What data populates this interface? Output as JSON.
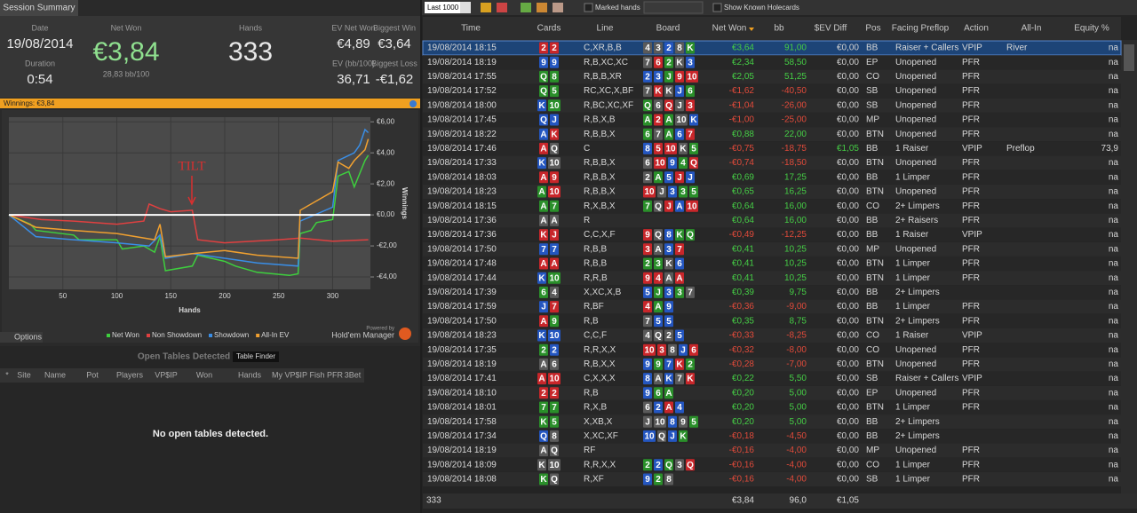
{
  "summary": {
    "tab": "Session Summary",
    "date_label": "Date",
    "date": "19/08/2014",
    "duration_label": "Duration",
    "duration": "0:54",
    "net_won_label": "Net Won",
    "net_won": "€3,84",
    "bb100": "28,83 bb/100",
    "hands_label": "Hands",
    "hands": "333",
    "ev_net_won_label": "EV Net Won",
    "ev_net_won": "€4,89",
    "biggest_win_label": "Biggest Win",
    "biggest_win": "€3,64",
    "ev_bb100_label": "EV (bb/100)",
    "ev_bb100": "36,71",
    "biggest_loss_label": "Biggest Loss",
    "biggest_loss": "-€1,62",
    "winnings_bar": "Winnings: €3,84",
    "options": "Options",
    "powered_by": "Powered by",
    "brand": "Hold'em Manager"
  },
  "chart_data": {
    "type": "line",
    "xlabel": "Hands",
    "ylabel": "Winnings",
    "annotation": "TILT",
    "xlim": [
      0,
      335
    ],
    "ylim": [
      -4.8,
      6.3
    ],
    "xticks": [
      50,
      100,
      150,
      200,
      250,
      300
    ],
    "yticks": [
      {
        "value": 6,
        "label": "€6,00"
      },
      {
        "value": 4,
        "label": "€4,00"
      },
      {
        "value": 2,
        "label": "€2,00"
      },
      {
        "value": 0,
        "label": "€0,00"
      },
      {
        "value": -2,
        "label": "-€2,00"
      },
      {
        "value": -4,
        "label": "-€4,00"
      }
    ],
    "grid": true,
    "series": [
      {
        "name": "Net Won",
        "color": "#3ecf3e",
        "x": [
          0,
          20,
          25,
          60,
          65,
          100,
          105,
          125,
          135,
          140,
          145,
          170,
          175,
          200,
          210,
          230,
          260,
          268,
          270,
          280,
          285,
          300,
          305,
          315,
          320,
          330,
          333
        ],
        "values": [
          0,
          -0.6,
          -1.0,
          -1.3,
          -1.6,
          -1.6,
          -2.2,
          -2.0,
          -2.4,
          -1.4,
          -3.6,
          -3.3,
          -2.6,
          -3.0,
          -3.3,
          -3.7,
          -3.9,
          -3.8,
          -1.2,
          -1.0,
          -0.5,
          -0.3,
          2.5,
          2.8,
          1.8,
          3.5,
          3.84
        ]
      },
      {
        "name": "Non Showdown",
        "color": "#e04040",
        "x": [
          0,
          30,
          60,
          100,
          125,
          130,
          140,
          150,
          170,
          175,
          200,
          250,
          270,
          300,
          333
        ],
        "values": [
          0,
          -0.3,
          -0.4,
          -0.6,
          -0.4,
          0.7,
          0.4,
          0.2,
          0.3,
          -1.6,
          -1.8,
          -1.6,
          -1.5,
          -1.7,
          -1.6
        ]
      },
      {
        "name": "Showdown",
        "color": "#3a8ee6",
        "x": [
          0,
          25,
          60,
          100,
          130,
          140,
          145,
          170,
          200,
          230,
          268,
          270,
          300,
          305,
          320,
          325,
          330,
          333
        ],
        "values": [
          0,
          -1.4,
          -1.6,
          -1.8,
          -2.0,
          -1.3,
          -2.8,
          -2.5,
          -2.8,
          -3.1,
          -3.3,
          -0.4,
          0.5,
          3.5,
          4.0,
          4.5,
          5.5,
          5.3
        ]
      },
      {
        "name": "All-In EV",
        "color": "#f0a030",
        "x": [
          0,
          25,
          60,
          100,
          135,
          140,
          145,
          170,
          200,
          230,
          268,
          270,
          300,
          305,
          315,
          320,
          330,
          333
        ],
        "values": [
          0,
          -0.8,
          -1.0,
          -1.2,
          -1.6,
          -0.6,
          -2.7,
          -2.5,
          -2.3,
          -2.6,
          -2.8,
          0.3,
          1.5,
          3.4,
          3.0,
          3.5,
          4.2,
          4.89
        ]
      }
    ]
  },
  "open_tables": {
    "title": "Open Tables Detected",
    "button": "Table Finder",
    "columns": [
      "*",
      "Site",
      "Name",
      "Pot",
      "Players",
      "VP$IP",
      "Won",
      "Hands",
      "My VP$IP",
      "Fish",
      "PFR",
      "3Bet"
    ],
    "empty": "No open tables detected."
  },
  "toolbar": {
    "range": "Last 1000",
    "marked": "Marked hands",
    "show_known": "Show Known Holecards"
  },
  "table": {
    "columns": [
      "Time",
      "Cards",
      "Line",
      "Board",
      "Net Won",
      "bb",
      "$EV Diff",
      "Pos",
      "Facing Preflop",
      "Action",
      "All-In",
      "Equity %"
    ],
    "rows": [
      [
        "19/08/2014 18:15",
        [
          "2",
          "2"
        ],
        "hh",
        "C,XR,B,B",
        [
          "4",
          "3",
          "2",
          "8",
          "K"
        ],
        "ssdsc",
        "€3,64",
        "91,00",
        "€0,00",
        "BB",
        "Raiser + Callers",
        "VPIP",
        "River",
        "na"
      ],
      [
        "19/08/2014 18:19",
        [
          "9",
          "9"
        ],
        "dd",
        "R,B,XC,XC",
        [
          "7",
          "6",
          "2",
          "K",
          "3"
        ],
        "shcsd",
        "€2,34",
        "58,50",
        "€0,00",
        "EP",
        "Unopened",
        "PFR",
        null,
        "na"
      ],
      [
        "19/08/2014 17:55",
        [
          "Q",
          "8"
        ],
        "cc",
        "R,B,B,XR",
        [
          "2",
          "3",
          "J",
          "9",
          "10"
        ],
        "ddchh",
        "€2,05",
        "51,25",
        "€0,00",
        "CO",
        "Unopened",
        "PFR",
        null,
        "na"
      ],
      [
        "19/08/2014 17:52",
        [
          "Q",
          "5"
        ],
        "cc",
        "RC,XC,X,BF",
        [
          "7",
          "K",
          "K",
          "J",
          "6"
        ],
        "shsdc",
        "-€1,62",
        "-40,50",
        "€0,00",
        "SB",
        "Unopened",
        "PFR",
        null,
        "na"
      ],
      [
        "19/08/2014 18:00",
        [
          "K",
          "10"
        ],
        "dc",
        "R,BC,XC,XF",
        [
          "Q",
          "6",
          "Q",
          "J",
          "3"
        ],
        "cshsh",
        "-€1,04",
        "-26,00",
        "€0,00",
        "SB",
        "Unopened",
        "PFR",
        null,
        "na"
      ],
      [
        "19/08/2014 17:45",
        [
          "Q",
          "J"
        ],
        "dd",
        "R,B,X,B",
        [
          "A",
          "2",
          "A",
          "10",
          "K"
        ],
        "chcsd",
        "-€1,00",
        "-25,00",
        "€0,00",
        "MP",
        "Unopened",
        "PFR",
        null,
        "na"
      ],
      [
        "19/08/2014 18:22",
        [
          "A",
          "K"
        ],
        "dh",
        "R,B,B,X",
        [
          "6",
          "7",
          "A",
          "6",
          "7"
        ],
        "cscdh",
        "€0,88",
        "22,00",
        "€0,00",
        "BTN",
        "Unopened",
        "PFR",
        null,
        "na"
      ],
      [
        "19/08/2014 17:46",
        [
          "A",
          "Q"
        ],
        "hs",
        "C",
        [
          "8",
          "5",
          "10",
          "K",
          "5"
        ],
        "dhhsc",
        "-€0,75",
        "-18,75",
        "€1,05",
        "BB",
        "1 Raiser",
        "VPIP",
        "Preflop",
        "73,9"
      ],
      [
        "19/08/2014 17:33",
        [
          "K",
          "10"
        ],
        "ds",
        "R,B,B,X",
        [
          "6",
          "10",
          "9",
          "4",
          "Q"
        ],
        "shdch",
        "-€0,74",
        "-18,50",
        "€0,00",
        "BTN",
        "Unopened",
        "PFR",
        null,
        "na"
      ],
      [
        "19/08/2014 18:03",
        [
          "A",
          "9"
        ],
        "hh",
        "R,B,B,X",
        [
          "2",
          "A",
          "5",
          "J",
          "J"
        ],
        "scdhd",
        "€0,69",
        "17,25",
        "€0,00",
        "BB",
        "1 Limper",
        "PFR",
        null,
        "na"
      ],
      [
        "19/08/2014 18:23",
        [
          "A",
          "10"
        ],
        "ch",
        "R,B,B,X",
        [
          "10",
          "J",
          "3",
          "3",
          "5"
        ],
        "hsdcc",
        "€0,65",
        "16,25",
        "€0,00",
        "BTN",
        "Unopened",
        "PFR",
        null,
        "na"
      ],
      [
        "19/08/2014 18:15",
        [
          "A",
          "7"
        ],
        "cc",
        "R,X,B,X",
        [
          "7",
          "Q",
          "J",
          "A",
          "10"
        ],
        "cshdh",
        "€0,64",
        "16,00",
        "€0,00",
        "CO",
        "2+ Limpers",
        "PFR",
        null,
        "na"
      ],
      [
        "19/08/2014 17:36",
        [
          "A",
          "A"
        ],
        "ss",
        "R",
        null,
        null,
        "€0,64",
        "16,00",
        "€0,00",
        "BB",
        "2+ Raisers",
        "PFR",
        null,
        "na"
      ],
      [
        "19/08/2014 17:36",
        [
          "K",
          "J"
        ],
        "hh",
        "C,C,X,F",
        [
          "9",
          "Q",
          "8",
          "K",
          "Q"
        ],
        "hsdcc",
        "-€0,49",
        "-12,25",
        "€0,00",
        "BB",
        "1 Raiser",
        "VPIP",
        null,
        "na"
      ],
      [
        "19/08/2014 17:50",
        [
          "7",
          "7"
        ],
        "dd",
        "R,B,B",
        [
          "3",
          "A",
          "3",
          "7"
        ],
        "hsdh",
        "€0,41",
        "10,25",
        "€0,00",
        "MP",
        "Unopened",
        "PFR",
        null,
        "na"
      ],
      [
        "19/08/2014 17:48",
        [
          "A",
          "A"
        ],
        "hh",
        "R,B,B",
        [
          "2",
          "3",
          "K",
          "6"
        ],
        "ccsd",
        "€0,41",
        "10,25",
        "€0,00",
        "BTN",
        "1 Limper",
        "PFR",
        null,
        "na"
      ],
      [
        "19/08/2014 17:44",
        [
          "K",
          "10"
        ],
        "dc",
        "R,R,B",
        [
          "9",
          "4",
          "A",
          "A"
        ],
        "hhsh",
        "€0,41",
        "10,25",
        "€0,00",
        "BTN",
        "1 Limper",
        "PFR",
        null,
        "na"
      ],
      [
        "19/08/2014 17:39",
        [
          "6",
          "4"
        ],
        "cs",
        "X,XC,X,B",
        [
          "5",
          "J",
          "3",
          "3",
          "7"
        ],
        "dcdcs",
        "€0,39",
        "9,75",
        "€0,00",
        "BB",
        "2+ Limpers",
        null,
        null,
        "na"
      ],
      [
        "19/08/2014 17:59",
        [
          "J",
          "7"
        ],
        "dh",
        "R,BF",
        [
          "4",
          "A",
          "9"
        ],
        "hcd",
        "-€0,36",
        "-9,00",
        "€0,00",
        "BB",
        "1 Limper",
        "PFR",
        null,
        "na"
      ],
      [
        "19/08/2014 17:50",
        [
          "A",
          "9"
        ],
        "hc",
        "R,B",
        [
          "7",
          "5",
          "5"
        ],
        "sdd",
        "€0,35",
        "8,75",
        "€0,00",
        "BTN",
        "2+ Limpers",
        "PFR",
        null,
        "na"
      ],
      [
        "19/08/2014 18:23",
        [
          "K",
          "10"
        ],
        "dd",
        "C,C,F",
        [
          "4",
          "Q",
          "2",
          "5"
        ],
        "sssd",
        "-€0,33",
        "-8,25",
        "€0,00",
        "CO",
        "1 Raiser",
        "VPIP",
        null,
        "na"
      ],
      [
        "19/08/2014 17:35",
        [
          "2",
          "2"
        ],
        "cd",
        "R,R,X,X",
        [
          "10",
          "3",
          "8",
          "J",
          "6"
        ],
        "hhsdh",
        "-€0,32",
        "-8,00",
        "€0,00",
        "CO",
        "Unopened",
        "PFR",
        null,
        "na"
      ],
      [
        "19/08/2014 18:19",
        [
          "A",
          "6"
        ],
        "ss",
        "R,B,X,X",
        [
          "9",
          "9",
          "7",
          "K",
          "2"
        ],
        "dcdhc",
        "-€0,28",
        "-7,00",
        "€0,00",
        "BTN",
        "Unopened",
        "PFR",
        null,
        "na"
      ],
      [
        "19/08/2014 17:41",
        [
          "A",
          "10"
        ],
        "hh",
        "C,X,X,X",
        [
          "8",
          "A",
          "K",
          "7",
          "K"
        ],
        "dsdsh",
        "€0,22",
        "5,50",
        "€0,00",
        "SB",
        "Raiser + Callers",
        "VPIP",
        null,
        "na"
      ],
      [
        "19/08/2014 18:10",
        [
          "2",
          "2"
        ],
        "hh",
        "R,B",
        [
          "9",
          "6",
          "A"
        ],
        "dcc",
        "€0,20",
        "5,00",
        "€0,00",
        "EP",
        "Unopened",
        "PFR",
        null,
        "na"
      ],
      [
        "19/08/2014 18:01",
        [
          "7",
          "7"
        ],
        "cc",
        "R,X,B",
        [
          "6",
          "2",
          "A",
          "4"
        ],
        "sdhd",
        "€0,20",
        "5,00",
        "€0,00",
        "BTN",
        "1 Limper",
        "PFR",
        null,
        "na"
      ],
      [
        "19/08/2014 17:58",
        [
          "K",
          "5"
        ],
        "cc",
        "X,XB,X",
        [
          "J",
          "10",
          "8",
          "9",
          "5"
        ],
        "ssdsc",
        "€0,20",
        "5,00",
        "€0,00",
        "BB",
        "2+ Limpers",
        null,
        null,
        "na"
      ],
      [
        "19/08/2014 17:34",
        [
          "Q",
          "8"
        ],
        "ds",
        "X,XC,XF",
        [
          "10",
          "Q",
          "J",
          "K"
        ],
        "dsdc",
        "-€0,18",
        "-4,50",
        "€0,00",
        "BB",
        "2+ Limpers",
        null,
        null,
        "na"
      ],
      [
        "19/08/2014 18:19",
        [
          "A",
          "Q"
        ],
        "ss",
        "RF",
        null,
        null,
        "-€0,16",
        "-4,00",
        "€0,00",
        "MP",
        "Unopened",
        "PFR",
        null,
        "na"
      ],
      [
        "19/08/2014 18:09",
        [
          "K",
          "10"
        ],
        "ss",
        "R,R,X,X",
        [
          "2",
          "2",
          "Q",
          "3",
          "Q"
        ],
        "cdcsh",
        "-€0,16",
        "-4,00",
        "€0,00",
        "CO",
        "1 Limper",
        "PFR",
        null,
        "na"
      ],
      [
        "19/08/2014 18:08",
        [
          "K",
          "Q"
        ],
        "cs",
        "R,XF",
        [
          "9",
          "2",
          "8"
        ],
        "dcs",
        "-€0,16",
        "-4,00",
        "€0,00",
        "SB",
        "1 Limper",
        "PFR",
        null,
        "na"
      ]
    ],
    "footer": [
      "333",
      "€3,84",
      "96,0",
      "€1,05"
    ]
  }
}
